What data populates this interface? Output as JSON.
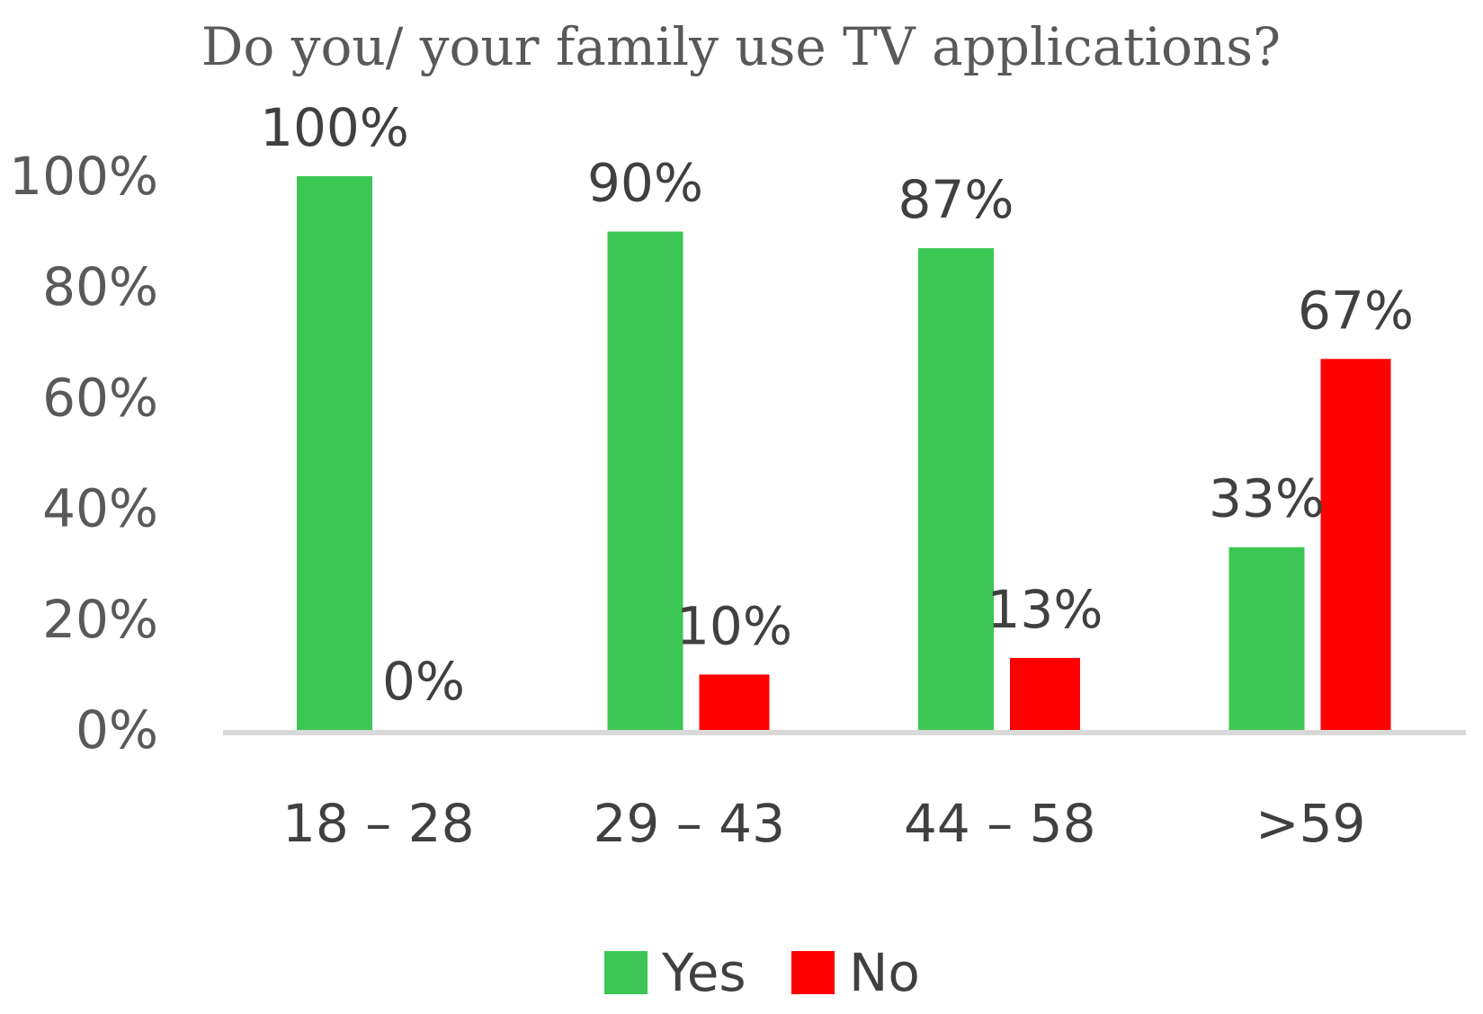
{
  "chart_data": {
    "type": "bar",
    "title": "Do you/ your family use TV applications?",
    "categories": [
      "18 – 28",
      "29 – 43",
      "44 – 58",
      ">59"
    ],
    "series": [
      {
        "name": "Yes",
        "color": "#3cc654",
        "values": [
          100,
          90,
          87,
          33
        ],
        "labels": [
          "100%",
          "90%",
          "87%",
          "33%"
        ]
      },
      {
        "name": "No",
        "color": "#ff0000",
        "values": [
          0,
          10,
          13,
          67
        ],
        "labels": [
          "0%",
          "10%",
          "13%",
          "67%"
        ]
      }
    ],
    "y_ticks": [
      {
        "value": 0,
        "label": "0%"
      },
      {
        "value": 20,
        "label": "20%"
      },
      {
        "value": 40,
        "label": "40%"
      },
      {
        "value": 60,
        "label": "60%"
      },
      {
        "value": 80,
        "label": "80%"
      },
      {
        "value": 100,
        "label": "100%"
      }
    ],
    "ylim": [
      0,
      100
    ],
    "grid": false,
    "legend": "bottom"
  }
}
